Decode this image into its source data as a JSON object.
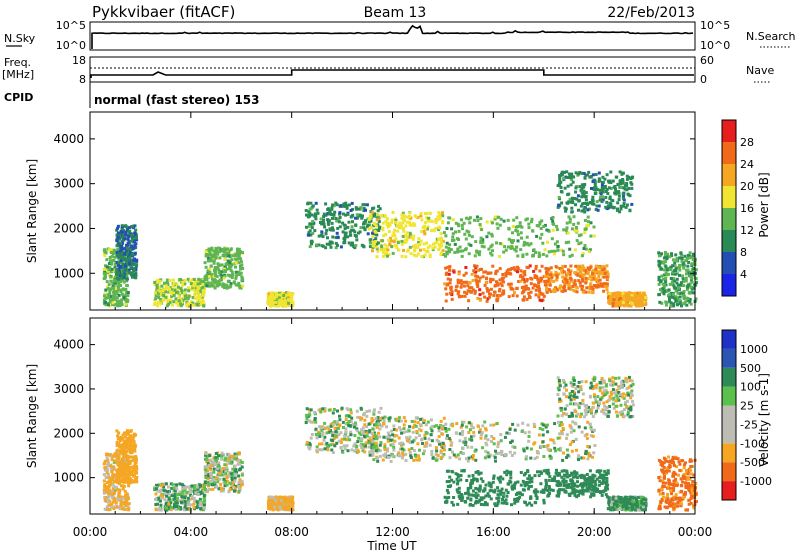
{
  "header": {
    "station": "Pykkvibaer (fitACF)",
    "beam": "Beam 13",
    "date": "22/Feb/2013",
    "cpid_label": "CPID",
    "cpid_text": "normal (fast stereo) 153"
  },
  "noise_panel": {
    "left_label": "N.Sky",
    "right_label": "N.Search",
    "left_ticks": [
      "10^5",
      "10^0"
    ],
    "right_ticks": [
      "10^5",
      "10^0"
    ]
  },
  "freq_panel": {
    "left_label_top": "Freq.",
    "left_label_unit": "[MHz]",
    "left_ticks": [
      "18",
      "8"
    ],
    "right_label": "Nave",
    "right_ticks": [
      "60",
      "0"
    ]
  },
  "x_axis": {
    "label": "Time UT",
    "ticks": [
      "00:00",
      "04:00",
      "08:00",
      "12:00",
      "16:00",
      "20:00",
      "00:00"
    ]
  },
  "colors": {
    "power": [
      "#1a23e6",
      "#234fb4",
      "#2a8a55",
      "#5fb552",
      "#f0e632",
      "#f5a623",
      "#f06a1a",
      "#e61e1e"
    ],
    "velocity": [
      "#e61e1e",
      "#f06a1a",
      "#f5a623",
      "#bdbdb4",
      "#bdbdb4",
      "#5cc04c",
      "#2e8b57",
      "#2a55b0",
      "#1e32c8"
    ]
  },
  "chart_data": [
    {
      "type": "heatmap",
      "title": "Power",
      "ylabel": "Slant Range [km]",
      "xlabel": "",
      "x_range_hours": [
        0,
        24
      ],
      "ylim": [
        180,
        4600
      ],
      "yticks": [
        1000,
        2000,
        3000,
        4000
      ],
      "colorbar": {
        "label": "Power [dB]",
        "ticks": [
          "4",
          "8",
          "12",
          "16",
          "20",
          "24",
          "28"
        ],
        "range": [
          0,
          32
        ]
      },
      "regions": [
        {
          "t0": 0.5,
          "t1": 1.5,
          "r0": 300,
          "r1": 1600,
          "level": 14
        },
        {
          "t0": 1.0,
          "t1": 1.8,
          "r0": 900,
          "r1": 2100,
          "level": 8
        },
        {
          "t0": 2.5,
          "t1": 4.5,
          "r0": 300,
          "r1": 900,
          "level": 16
        },
        {
          "t0": 4.5,
          "t1": 6.0,
          "r0": 700,
          "r1": 1600,
          "level": 14
        },
        {
          "t0": 7.0,
          "t1": 8.0,
          "r0": 300,
          "r1": 600,
          "level": 18
        },
        {
          "t0": 8.5,
          "t1": 11.5,
          "r0": 1600,
          "r1": 2600,
          "level": 10
        },
        {
          "t0": 11.0,
          "t1": 14.0,
          "r0": 1400,
          "r1": 2400,
          "level": 18
        },
        {
          "t0": 14.0,
          "t1": 20.0,
          "r0": 1400,
          "r1": 2300,
          "level": 14
        },
        {
          "t0": 14.0,
          "t1": 18.0,
          "r0": 400,
          "r1": 1200,
          "level": 26
        },
        {
          "t0": 18.0,
          "t1": 20.5,
          "r0": 600,
          "r1": 1200,
          "level": 24
        },
        {
          "t0": 20.5,
          "t1": 22.0,
          "r0": 300,
          "r1": 600,
          "level": 22
        },
        {
          "t0": 18.5,
          "t1": 21.5,
          "r0": 2400,
          "r1": 3300,
          "level": 10
        },
        {
          "t0": 22.5,
          "t1": 24.0,
          "r0": 300,
          "r1": 1500,
          "level": 12
        }
      ]
    },
    {
      "type": "heatmap",
      "title": "Velocity",
      "ylabel": "Slant Range [km]",
      "xlabel": "Time UT",
      "x_range_hours": [
        0,
        24
      ],
      "ylim": [
        180,
        4600
      ],
      "yticks": [
        1000,
        2000,
        3000,
        4000
      ],
      "colorbar": {
        "label": "Velocity [m s-1]",
        "ticks": [
          "-1000",
          "-500",
          "-100",
          "-25",
          "25",
          "100",
          "500",
          "1000"
        ],
        "range": [
          -1200,
          1200
        ]
      },
      "regions": [
        {
          "t0": 0.5,
          "t1": 1.5,
          "r0": 300,
          "r1": 1600,
          "level": -150
        },
        {
          "t0": 1.0,
          "t1": 1.8,
          "r0": 900,
          "r1": 2100,
          "level": -300
        },
        {
          "t0": 2.5,
          "t1": 4.5,
          "r0": 300,
          "r1": 900,
          "level": 60
        },
        {
          "t0": 4.5,
          "t1": 6.0,
          "r0": 700,
          "r1": 1600,
          "level": 0
        },
        {
          "t0": 7.0,
          "t1": 8.0,
          "r0": 300,
          "r1": 600,
          "level": -200
        },
        {
          "t0": 8.5,
          "t1": 11.5,
          "r0": 1600,
          "r1": 2600,
          "level": 0
        },
        {
          "t0": 11.0,
          "t1": 14.0,
          "r0": 1400,
          "r1": 2400,
          "level": 0
        },
        {
          "t0": 14.0,
          "t1": 20.0,
          "r0": 1400,
          "r1": 2300,
          "level": 0
        },
        {
          "t0": 14.0,
          "t1": 18.0,
          "r0": 400,
          "r1": 1200,
          "level": 300
        },
        {
          "t0": 18.0,
          "t1": 20.5,
          "r0": 600,
          "r1": 1200,
          "level": 300
        },
        {
          "t0": 20.5,
          "t1": 22.0,
          "r0": 300,
          "r1": 600,
          "level": 150
        },
        {
          "t0": 18.5,
          "t1": 21.5,
          "r0": 2400,
          "r1": 3300,
          "level": 0
        },
        {
          "t0": 22.5,
          "t1": 24.0,
          "r0": 300,
          "r1": 1500,
          "level": -600
        }
      ]
    }
  ]
}
